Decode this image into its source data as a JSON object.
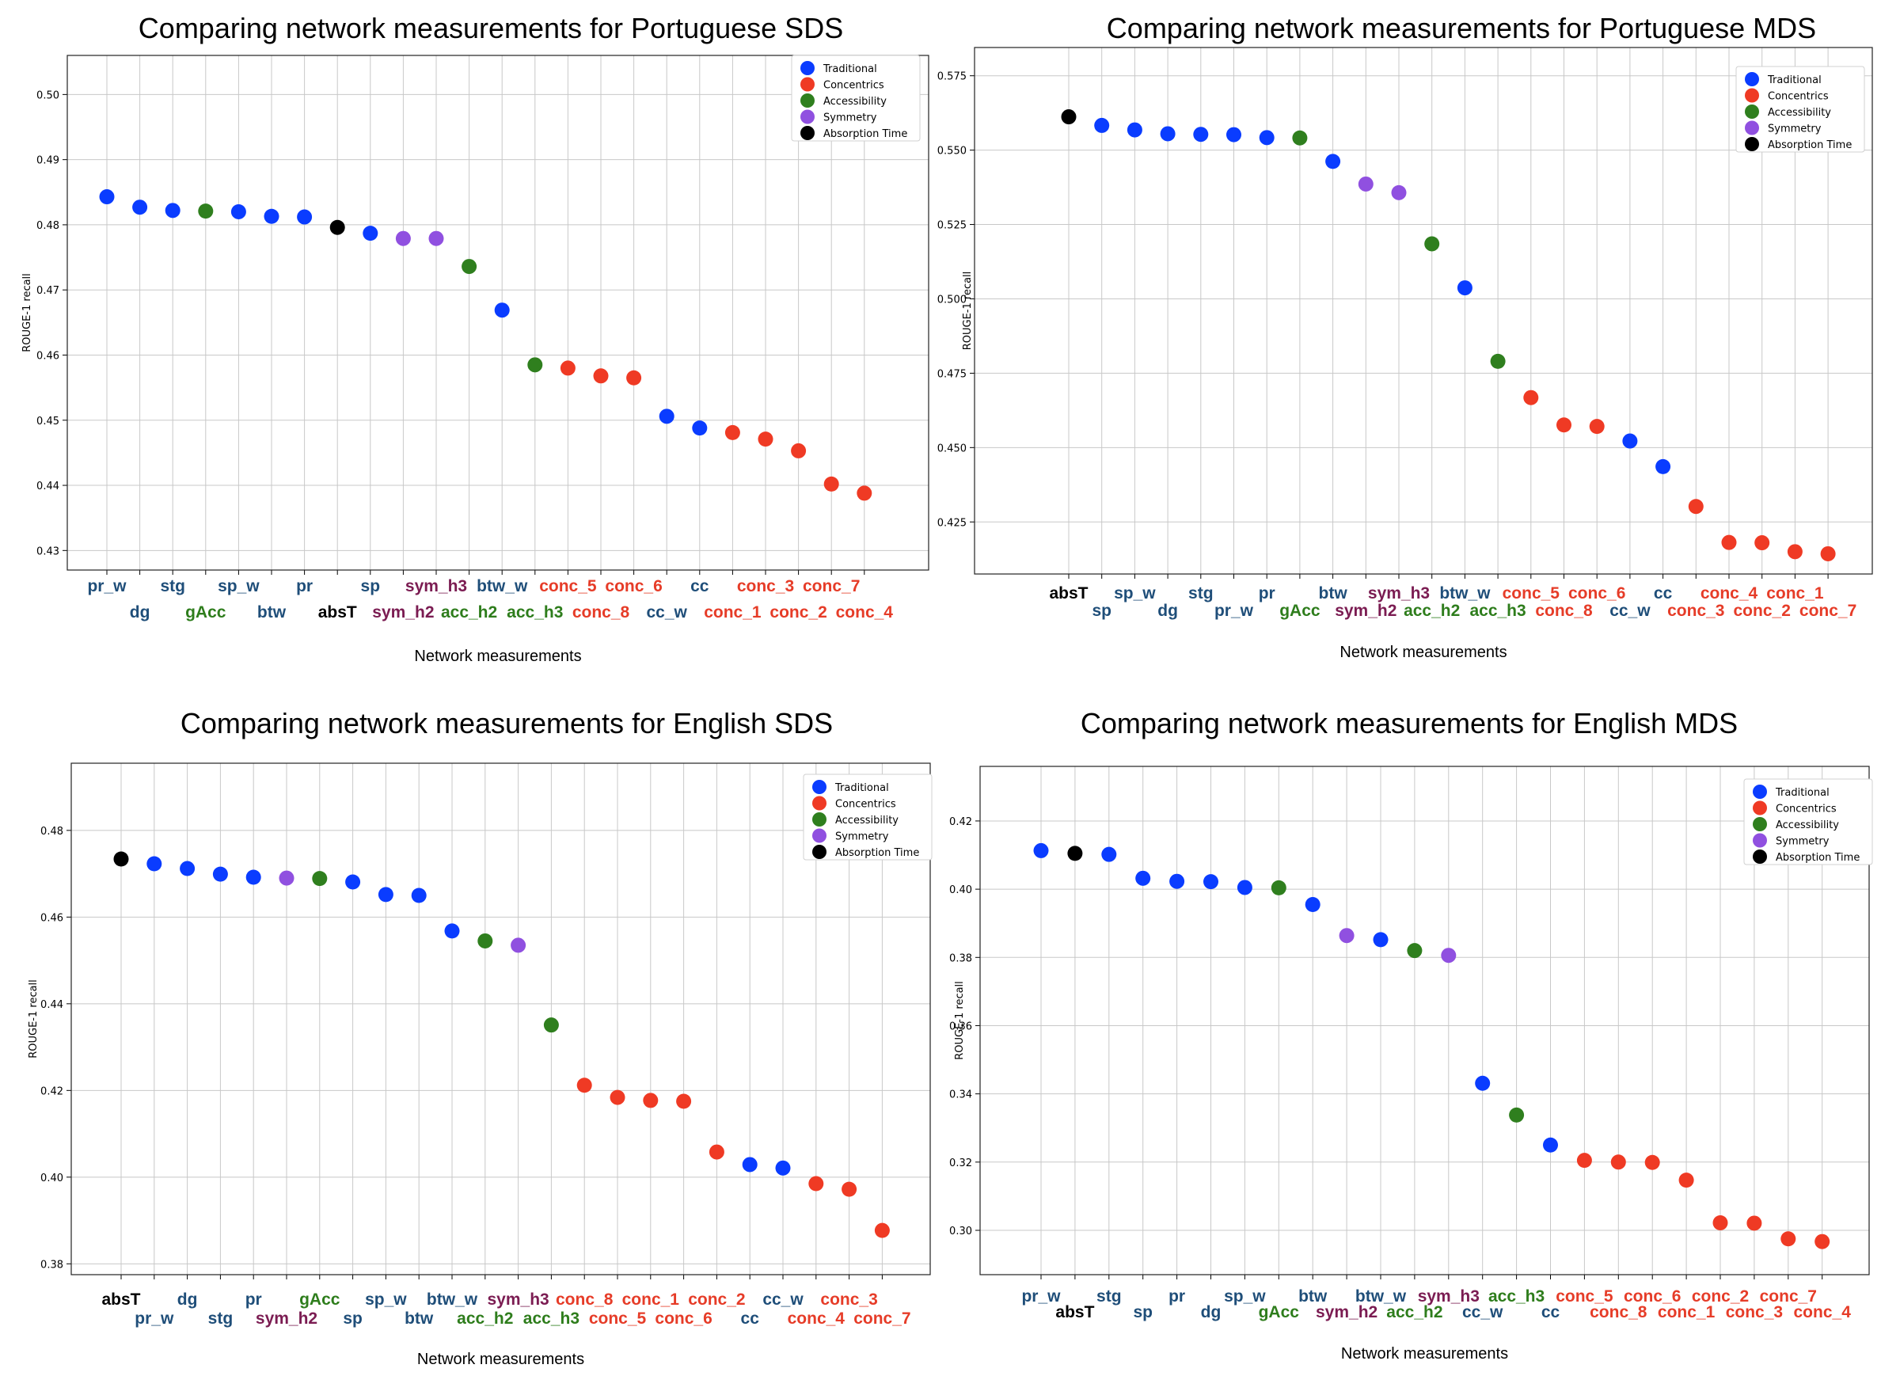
{
  "category_colors": {
    "traditional": "#0a3cff",
    "concentrics": "#ef3a24",
    "accessibility": "#2f7f1e",
    "symmetry": "#9050e0",
    "absorption": "#000000"
  },
  "label_colors": {
    "traditional": "#1f4e79",
    "concentrics": "#e63c28",
    "accessibility": "#2e7d1c",
    "symmetry": "#7b1c52",
    "absorption": "#000000"
  },
  "legend_entries": [
    {
      "key": "traditional",
      "label": "Traditional"
    },
    {
      "key": "concentrics",
      "label": "Concentrics"
    },
    {
      "key": "accessibility",
      "label": "Accessibility"
    },
    {
      "key": "symmetry",
      "label": "Symmetry"
    },
    {
      "key": "absorption",
      "label": "Absorption Time"
    }
  ],
  "chart_data": [
    {
      "type": "scatter",
      "title": "Comparing network measurements for Portuguese SDS",
      "xlabel": "Network measurements",
      "ylabel": "ROUGE-1 recall",
      "ylim": [
        0.427,
        0.506
      ],
      "yticks": [
        0.43,
        0.44,
        0.45,
        0.46,
        0.47,
        0.48,
        0.49,
        0.5
      ],
      "grid": true,
      "legend_position": "top-right",
      "points": [
        {
          "label": "pr_w",
          "group": "traditional",
          "value": 0.4843
        },
        {
          "label": "dg",
          "group": "traditional",
          "value": 0.4827
        },
        {
          "label": "stg",
          "group": "traditional",
          "value": 0.4822
        },
        {
          "label": "gAcc",
          "group": "accessibility",
          "value": 0.4821
        },
        {
          "label": "sp_w",
          "group": "traditional",
          "value": 0.482
        },
        {
          "label": "btw",
          "group": "traditional",
          "value": 0.4813
        },
        {
          "label": "pr",
          "group": "traditional",
          "value": 0.4812
        },
        {
          "label": "absT",
          "group": "absorption",
          "value": 0.4796
        },
        {
          "label": "sp",
          "group": "traditional",
          "value": 0.4787
        },
        {
          "label": "sym_h2",
          "group": "symmetry",
          "value": 0.4779
        },
        {
          "label": "sym_h3",
          "group": "symmetry",
          "value": 0.4779
        },
        {
          "label": "acc_h2",
          "group": "accessibility",
          "value": 0.4736
        },
        {
          "label": "btw_w",
          "group": "traditional",
          "value": 0.4669
        },
        {
          "label": "acc_h3",
          "group": "accessibility",
          "value": 0.4585
        },
        {
          "label": "conc_5",
          "group": "concentrics",
          "value": 0.458
        },
        {
          "label": "conc_8",
          "group": "concentrics",
          "value": 0.4568
        },
        {
          "label": "conc_6",
          "group": "concentrics",
          "value": 0.4565
        },
        {
          "label": "cc_w",
          "group": "traditional",
          "value": 0.4506
        },
        {
          "label": "cc",
          "group": "traditional",
          "value": 0.4488
        },
        {
          "label": "conc_1",
          "group": "concentrics",
          "value": 0.4481
        },
        {
          "label": "conc_3",
          "group": "concentrics",
          "value": 0.4471
        },
        {
          "label": "conc_2",
          "group": "concentrics",
          "value": 0.4453
        },
        {
          "label": "conc_7",
          "group": "concentrics",
          "value": 0.4402
        },
        {
          "label": "conc_4",
          "group": "concentrics",
          "value": 0.4388
        }
      ]
    },
    {
      "type": "scatter",
      "title": "Comparing network measurements for Portuguese MDS",
      "xlabel": "Network measurements",
      "ylabel": "ROUGE-1 recall",
      "ylim": [
        0.4075,
        0.5845
      ],
      "yticks": [
        0.425,
        0.45,
        0.475,
        0.5,
        0.525,
        0.55,
        0.575
      ],
      "grid": true,
      "legend_position": "top-right",
      "points": [
        {
          "label": "absT",
          "group": "absorption",
          "value": 0.5612
        },
        {
          "label": "sp",
          "group": "traditional",
          "value": 0.5583
        },
        {
          "label": "sp_w",
          "group": "traditional",
          "value": 0.5568
        },
        {
          "label": "dg",
          "group": "traditional",
          "value": 0.5555
        },
        {
          "label": "stg",
          "group": "traditional",
          "value": 0.5553
        },
        {
          "label": "pr_w",
          "group": "traditional",
          "value": 0.5552
        },
        {
          "label": "pr",
          "group": "traditional",
          "value": 0.5542
        },
        {
          "label": "gAcc",
          "group": "accessibility",
          "value": 0.5541
        },
        {
          "label": "btw",
          "group": "traditional",
          "value": 0.5462
        },
        {
          "label": "sym_h2",
          "group": "symmetry",
          "value": 0.5386
        },
        {
          "label": "sym_h3",
          "group": "symmetry",
          "value": 0.5357
        },
        {
          "label": "acc_h2",
          "group": "accessibility",
          "value": 0.5185
        },
        {
          "label": "btw_w",
          "group": "traditional",
          "value": 0.5037
        },
        {
          "label": "acc_h3",
          "group": "accessibility",
          "value": 0.479
        },
        {
          "label": "conc_5",
          "group": "concentrics",
          "value": 0.4668
        },
        {
          "label": "conc_8",
          "group": "concentrics",
          "value": 0.4576
        },
        {
          "label": "conc_6",
          "group": "concentrics",
          "value": 0.4571
        },
        {
          "label": "cc_w",
          "group": "traditional",
          "value": 0.4522
        },
        {
          "label": "cc",
          "group": "traditional",
          "value": 0.4436
        },
        {
          "label": "conc_3",
          "group": "concentrics",
          "value": 0.4302
        },
        {
          "label": "conc_4",
          "group": "concentrics",
          "value": 0.4181
        },
        {
          "label": "conc_2",
          "group": "concentrics",
          "value": 0.418
        },
        {
          "label": "conc_1",
          "group": "concentrics",
          "value": 0.415
        },
        {
          "label": "conc_7",
          "group": "concentrics",
          "value": 0.4143
        }
      ]
    },
    {
      "type": "scatter",
      "title": "Comparing network measurements for English SDS",
      "xlabel": "Network measurements",
      "ylabel": "ROUGE-1 recall",
      "ylim": [
        0.3775,
        0.4955
      ],
      "yticks": [
        0.38,
        0.4,
        0.42,
        0.44,
        0.46,
        0.48
      ],
      "grid": true,
      "legend_position": "top-right",
      "points": [
        {
          "label": "absT",
          "group": "absorption",
          "value": 0.4734
        },
        {
          "label": "pr_w",
          "group": "traditional",
          "value": 0.4723
        },
        {
          "label": "dg",
          "group": "traditional",
          "value": 0.4712
        },
        {
          "label": "stg",
          "group": "traditional",
          "value": 0.4699
        },
        {
          "label": "pr",
          "group": "traditional",
          "value": 0.4692
        },
        {
          "label": "sym_h2",
          "group": "symmetry",
          "value": 0.469
        },
        {
          "label": "gAcc",
          "group": "accessibility",
          "value": 0.4689
        },
        {
          "label": "sp",
          "group": "traditional",
          "value": 0.4681
        },
        {
          "label": "sp_w",
          "group": "traditional",
          "value": 0.4652
        },
        {
          "label": "btw",
          "group": "traditional",
          "value": 0.465
        },
        {
          "label": "btw_w",
          "group": "traditional",
          "value": 0.4568
        },
        {
          "label": "acc_h2",
          "group": "accessibility",
          "value": 0.4545
        },
        {
          "label": "sym_h3",
          "group": "symmetry",
          "value": 0.4535
        },
        {
          "label": "acc_h3",
          "group": "accessibility",
          "value": 0.4351
        },
        {
          "label": "conc_8",
          "group": "concentrics",
          "value": 0.4212
        },
        {
          "label": "conc_5",
          "group": "concentrics",
          "value": 0.4184
        },
        {
          "label": "conc_1",
          "group": "concentrics",
          "value": 0.4177
        },
        {
          "label": "conc_6",
          "group": "concentrics",
          "value": 0.4175
        },
        {
          "label": "conc_2",
          "group": "concentrics",
          "value": 0.4058
        },
        {
          "label": "cc",
          "group": "traditional",
          "value": 0.4029
        },
        {
          "label": "cc_w",
          "group": "traditional",
          "value": 0.4021
        },
        {
          "label": "conc_4",
          "group": "concentrics",
          "value": 0.3985
        },
        {
          "label": "conc_3",
          "group": "concentrics",
          "value": 0.3972
        },
        {
          "label": "conc_7",
          "group": "concentrics",
          "value": 0.3877
        }
      ]
    },
    {
      "type": "scatter",
      "title": "Comparing network measurements for English MDS",
      "xlabel": "Network measurements",
      "ylabel": "ROUGE-1 recall",
      "ylim": [
        0.287,
        0.436
      ],
      "yticks": [
        0.3,
        0.32,
        0.34,
        0.36,
        0.38,
        0.4,
        0.42
      ],
      "grid": true,
      "legend_position": "top-right",
      "points": [
        {
          "label": "pr_w",
          "group": "traditional",
          "value": 0.4113
        },
        {
          "label": "absT",
          "group": "absorption",
          "value": 0.4105
        },
        {
          "label": "stg",
          "group": "traditional",
          "value": 0.4102
        },
        {
          "label": "sp",
          "group": "traditional",
          "value": 0.4032
        },
        {
          "label": "pr",
          "group": "traditional",
          "value": 0.4023
        },
        {
          "label": "dg",
          "group": "traditional",
          "value": 0.4022
        },
        {
          "label": "sp_w",
          "group": "traditional",
          "value": 0.4005
        },
        {
          "label": "gAcc",
          "group": "accessibility",
          "value": 0.4004
        },
        {
          "label": "btw",
          "group": "traditional",
          "value": 0.3955
        },
        {
          "label": "sym_h2",
          "group": "symmetry",
          "value": 0.3864
        },
        {
          "label": "btw_w",
          "group": "traditional",
          "value": 0.3852
        },
        {
          "label": "acc_h2",
          "group": "accessibility",
          "value": 0.382
        },
        {
          "label": "sym_h3",
          "group": "symmetry",
          "value": 0.3806
        },
        {
          "label": "cc_w",
          "group": "traditional",
          "value": 0.3431
        },
        {
          "label": "acc_h3",
          "group": "accessibility",
          "value": 0.3338
        },
        {
          "label": "cc",
          "group": "traditional",
          "value": 0.325
        },
        {
          "label": "conc_5",
          "group": "concentrics",
          "value": 0.3205
        },
        {
          "label": "conc_8",
          "group": "concentrics",
          "value": 0.32
        },
        {
          "label": "conc_6",
          "group": "concentrics",
          "value": 0.3199
        },
        {
          "label": "conc_1",
          "group": "concentrics",
          "value": 0.3147
        },
        {
          "label": "conc_2",
          "group": "concentrics",
          "value": 0.3022
        },
        {
          "label": "conc_3",
          "group": "concentrics",
          "value": 0.3021
        },
        {
          "label": "conc_7",
          "group": "concentrics",
          "value": 0.2975
        },
        {
          "label": "conc_4",
          "group": "concentrics",
          "value": 0.2967
        }
      ]
    }
  ]
}
